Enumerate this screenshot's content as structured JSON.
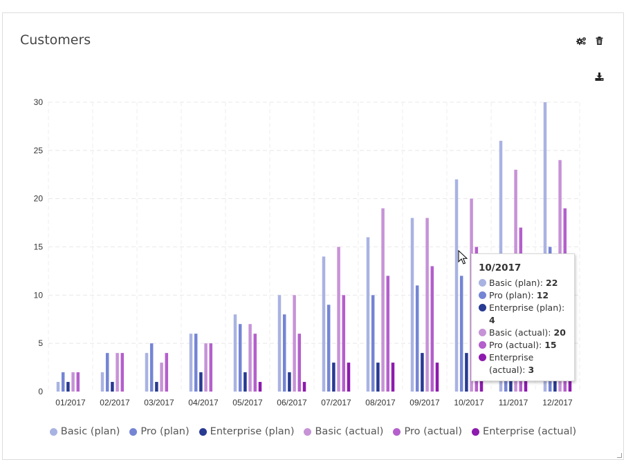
{
  "widget": {
    "title": "Customers",
    "icons": [
      "settings-icon",
      "delete-icon",
      "download-icon"
    ]
  },
  "chart_data": {
    "type": "bar",
    "categories": [
      "01/2017",
      "02/2017",
      "03/2017",
      "04/2017",
      "05/2017",
      "06/2017",
      "07/2017",
      "08/2017",
      "09/2017",
      "10/2017",
      "11/2017",
      "12/2017"
    ],
    "ylim": [
      0,
      30
    ],
    "yticks": [
      "0",
      "5",
      "10",
      "15",
      "20",
      "25",
      "30"
    ],
    "grid": true,
    "legend_position": "bottom",
    "series": [
      {
        "name": "Basic (plan)",
        "color": "#a9b3e2",
        "values": [
          1,
          2,
          4,
          6,
          8,
          10,
          14,
          16,
          18,
          22,
          26,
          30
        ]
      },
      {
        "name": "Pro (plan)",
        "color": "#7585d4",
        "values": [
          2,
          4,
          5,
          6,
          7,
          8,
          9,
          10,
          11,
          12,
          13,
          15
        ]
      },
      {
        "name": "Enterprise (plan)",
        "color": "#283a91",
        "values": [
          1,
          1,
          1,
          2,
          2,
          2,
          3,
          3,
          4,
          4,
          4,
          4
        ]
      },
      {
        "name": "Basic (actual)",
        "color": "#c693d6",
        "values": [
          2,
          4,
          3,
          5,
          7,
          10,
          15,
          19,
          18,
          20,
          23,
          24
        ]
      },
      {
        "name": "Pro (actual)",
        "color": "#b45fcc",
        "values": [
          2,
          4,
          4,
          5,
          6,
          6,
          10,
          12,
          13,
          15,
          17,
          19
        ]
      },
      {
        "name": "Enterprise (actual)",
        "color": "#8d1bad",
        "values": [
          0,
          0,
          0,
          0,
          1,
          1,
          3,
          3,
          3,
          3,
          3,
          3
        ]
      }
    ]
  },
  "tooltip": {
    "title": "10/2017",
    "rows": [
      {
        "label": "Basic (plan): ",
        "value": "22"
      },
      {
        "label": "Pro (plan): ",
        "value": "12"
      },
      {
        "label": "Enterprise (plan): ",
        "value": "4"
      },
      {
        "label": "Basic (actual): ",
        "value": "20"
      },
      {
        "label": "Pro (actual): ",
        "value": "15"
      },
      {
        "label": "Enterprise (actual): ",
        "value": "3"
      }
    ]
  }
}
